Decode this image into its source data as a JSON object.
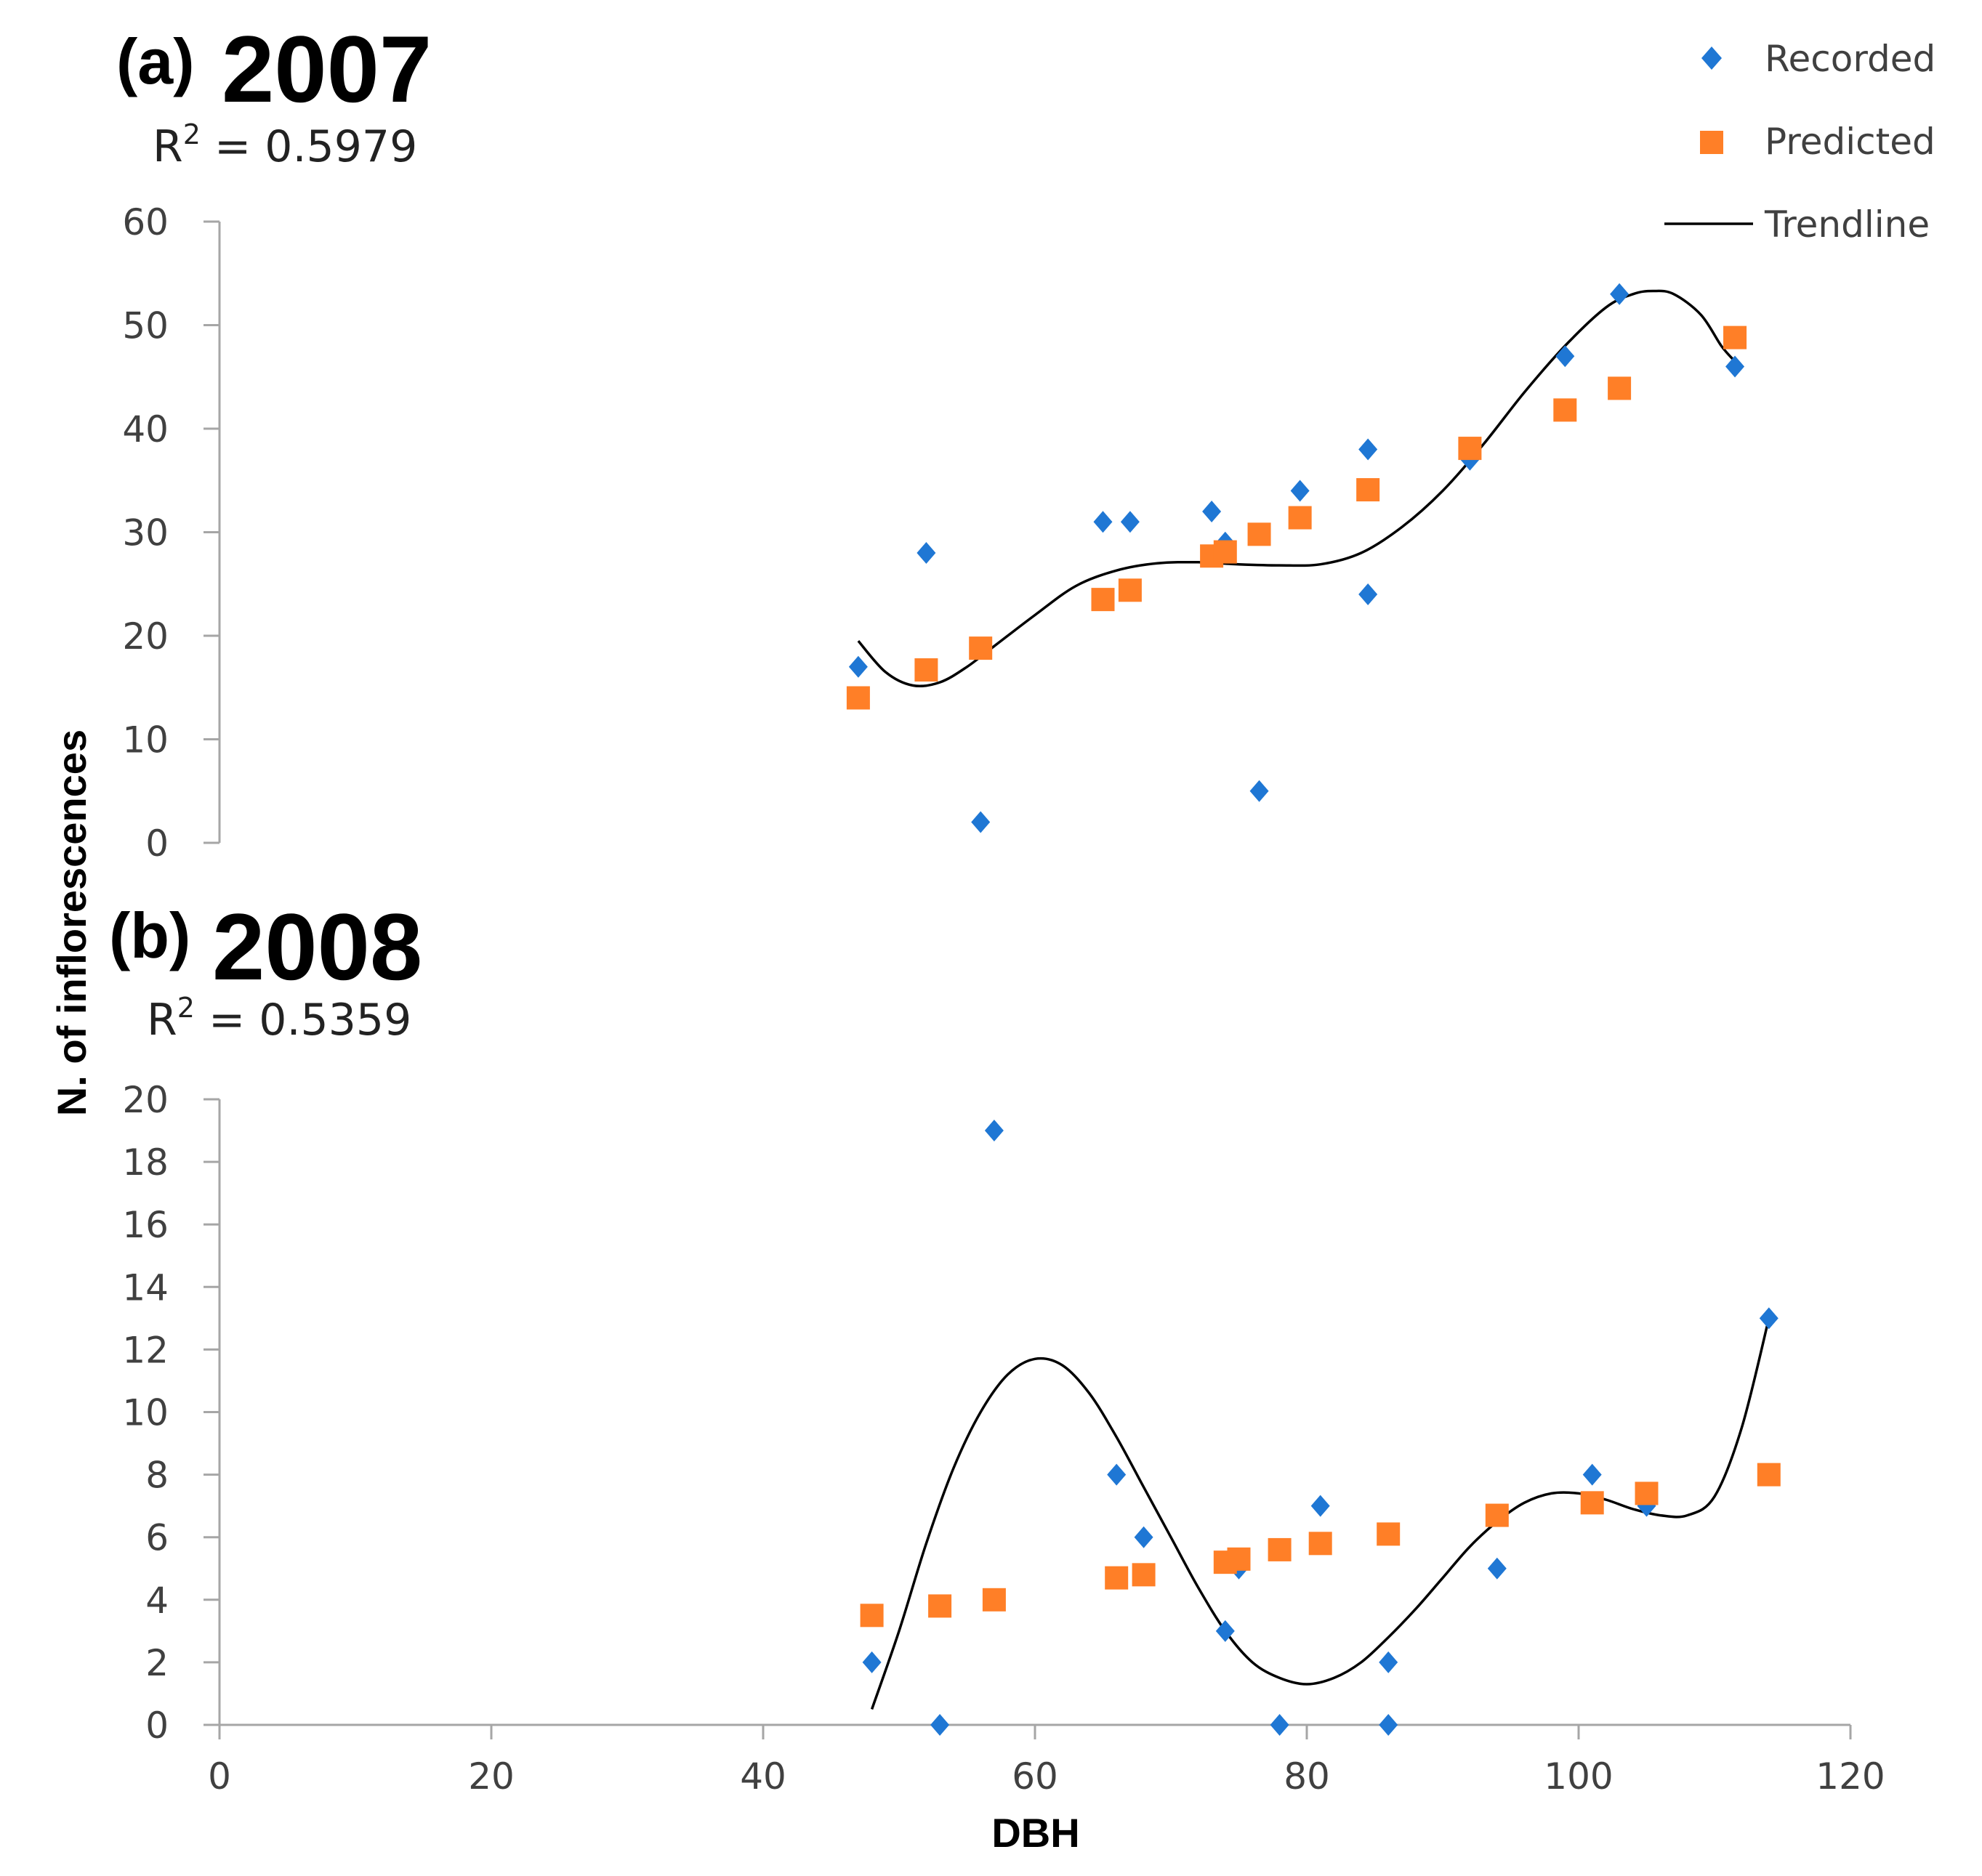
{
  "colors": {
    "recorded": "#1f77d4",
    "predicted": "#ff7f27",
    "trendline": "#000000",
    "axis": "#a6a6a6"
  },
  "legend": {
    "recorded_label": "Recorded",
    "predicted_label": "Predicted",
    "trendline_label": "Trendline"
  },
  "axis_labels": {
    "y": "N. of inflorescences",
    "x": "DBH"
  },
  "chart_data": [
    {
      "type": "scatter",
      "panel_prefix": "(a)",
      "year": "2007",
      "r2_base": "R",
      "r2_exp": "2",
      "r2_rest": " = 0.5979",
      "xlim": [
        0,
        120
      ],
      "ylim": [
        0,
        60
      ],
      "yticks": [
        0,
        10,
        20,
        30,
        40,
        50,
        60
      ],
      "series": [
        {
          "name": "Recorded",
          "marker": "diamond",
          "x": [
            47,
            52,
            56,
            65,
            67,
            73,
            74,
            76.5,
            79.5,
            84.5,
            84.5,
            92,
            99,
            103,
            111.5
          ],
          "y": [
            17,
            28,
            2,
            31,
            31,
            32,
            29,
            5,
            34,
            38,
            24,
            37,
            47,
            53,
            46
          ]
        },
        {
          "name": "Predicted",
          "marker": "square",
          "x": [
            47,
            52,
            56,
            65,
            67,
            73,
            74,
            76.5,
            79.5,
            84.5,
            92,
            99,
            103,
            111.5
          ],
          "y": [
            14,
            16.7,
            18.8,
            23.5,
            24.4,
            27.7,
            28.1,
            29.8,
            31.4,
            34.1,
            38.1,
            41.8,
            43.9,
            48.8
          ]
        },
        {
          "name": "Trendline",
          "marker": "line",
          "x": [
            47,
            49,
            51,
            53,
            55,
            57,
            60,
            63,
            66,
            69,
            72,
            75,
            78,
            81,
            84,
            87,
            90,
            93,
            96,
            99,
            102,
            104,
            105.5,
            107,
            109,
            110.5,
            111.5
          ],
          "y": [
            19.5,
            16.5,
            15.2,
            15.5,
            17,
            19,
            22,
            24.8,
            26.3,
            27,
            27.1,
            26.9,
            26.8,
            26.9,
            28,
            30.5,
            34,
            38.5,
            43.5,
            48,
            51.7,
            53,
            53.3,
            53,
            51,
            48,
            46.5
          ]
        }
      ]
    },
    {
      "type": "scatter",
      "panel_prefix": "(b)",
      "year": "2008",
      "r2_base": "R",
      "r2_exp": "2",
      "r2_rest": " = 0.5359",
      "xlabel": "DBH",
      "xlim": [
        0,
        120
      ],
      "ylim": [
        0,
        20
      ],
      "yticks": [
        0,
        2,
        4,
        6,
        8,
        10,
        12,
        14,
        16,
        18,
        20
      ],
      "xticks": [
        0,
        20,
        40,
        60,
        80,
        100,
        120
      ],
      "series": [
        {
          "name": "Recorded",
          "marker": "diamond",
          "x": [
            48,
            53,
            57,
            66,
            68,
            74,
            75,
            78,
            81,
            86,
            86,
            94,
            101,
            105,
            114
          ],
          "y": [
            2,
            0,
            19,
            8,
            6,
            3,
            5,
            0,
            7,
            0,
            2,
            5,
            8,
            7,
            13
          ]
        },
        {
          "name": "Predicted",
          "marker": "square",
          "x": [
            48,
            53,
            57,
            66,
            68,
            74,
            75,
            78,
            81,
            86,
            94,
            101,
            105,
            114
          ],
          "y": [
            3.5,
            3.8,
            4.0,
            4.7,
            4.8,
            5.2,
            5.3,
            5.6,
            5.8,
            6.1,
            6.7,
            7.1,
            7.4,
            8.0
          ]
        },
        {
          "name": "Trendline",
          "marker": "line",
          "x": [
            48,
            50,
            52,
            54,
            56,
            58,
            60,
            62,
            64,
            66,
            68,
            70,
            72,
            74,
            76,
            78,
            80,
            82,
            84,
            86,
            88,
            90,
            92,
            94,
            96,
            98,
            100,
            102,
            104,
            106,
            108,
            110,
            112,
            114
          ],
          "y": [
            0.5,
            3.0,
            5.8,
            8.2,
            10.0,
            11.2,
            11.7,
            11.5,
            10.6,
            9.2,
            7.6,
            6.0,
            4.4,
            3.0,
            2.0,
            1.5,
            1.3,
            1.5,
            2.0,
            2.8,
            3.7,
            4.7,
            5.7,
            6.5,
            7.1,
            7.4,
            7.4,
            7.2,
            6.9,
            6.7,
            6.7,
            7.3,
            9.5,
            13.0
          ]
        }
      ]
    }
  ]
}
